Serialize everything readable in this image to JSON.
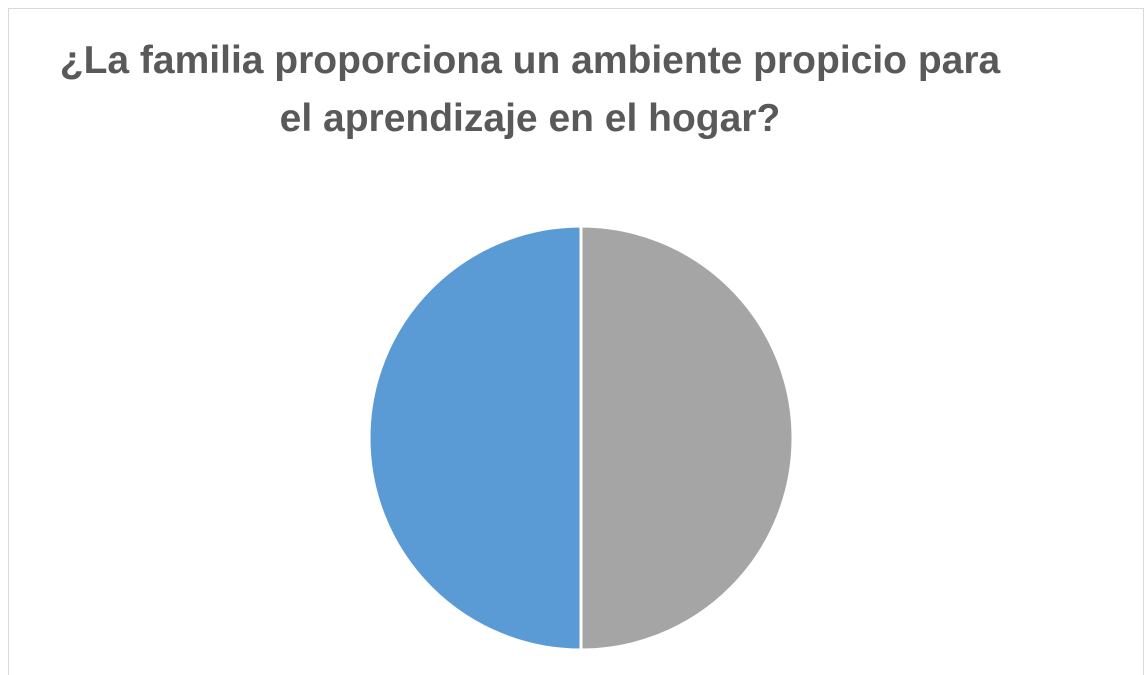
{
  "chart_data": {
    "type": "pie",
    "title": "¿La familia proporciona un ambiente propicio para el aprendizaje en el hogar?",
    "categories": [
      null,
      null
    ],
    "values": [
      50,
      50
    ],
    "colors": [
      "#a5a5a5",
      "#5b9bd5"
    ]
  }
}
